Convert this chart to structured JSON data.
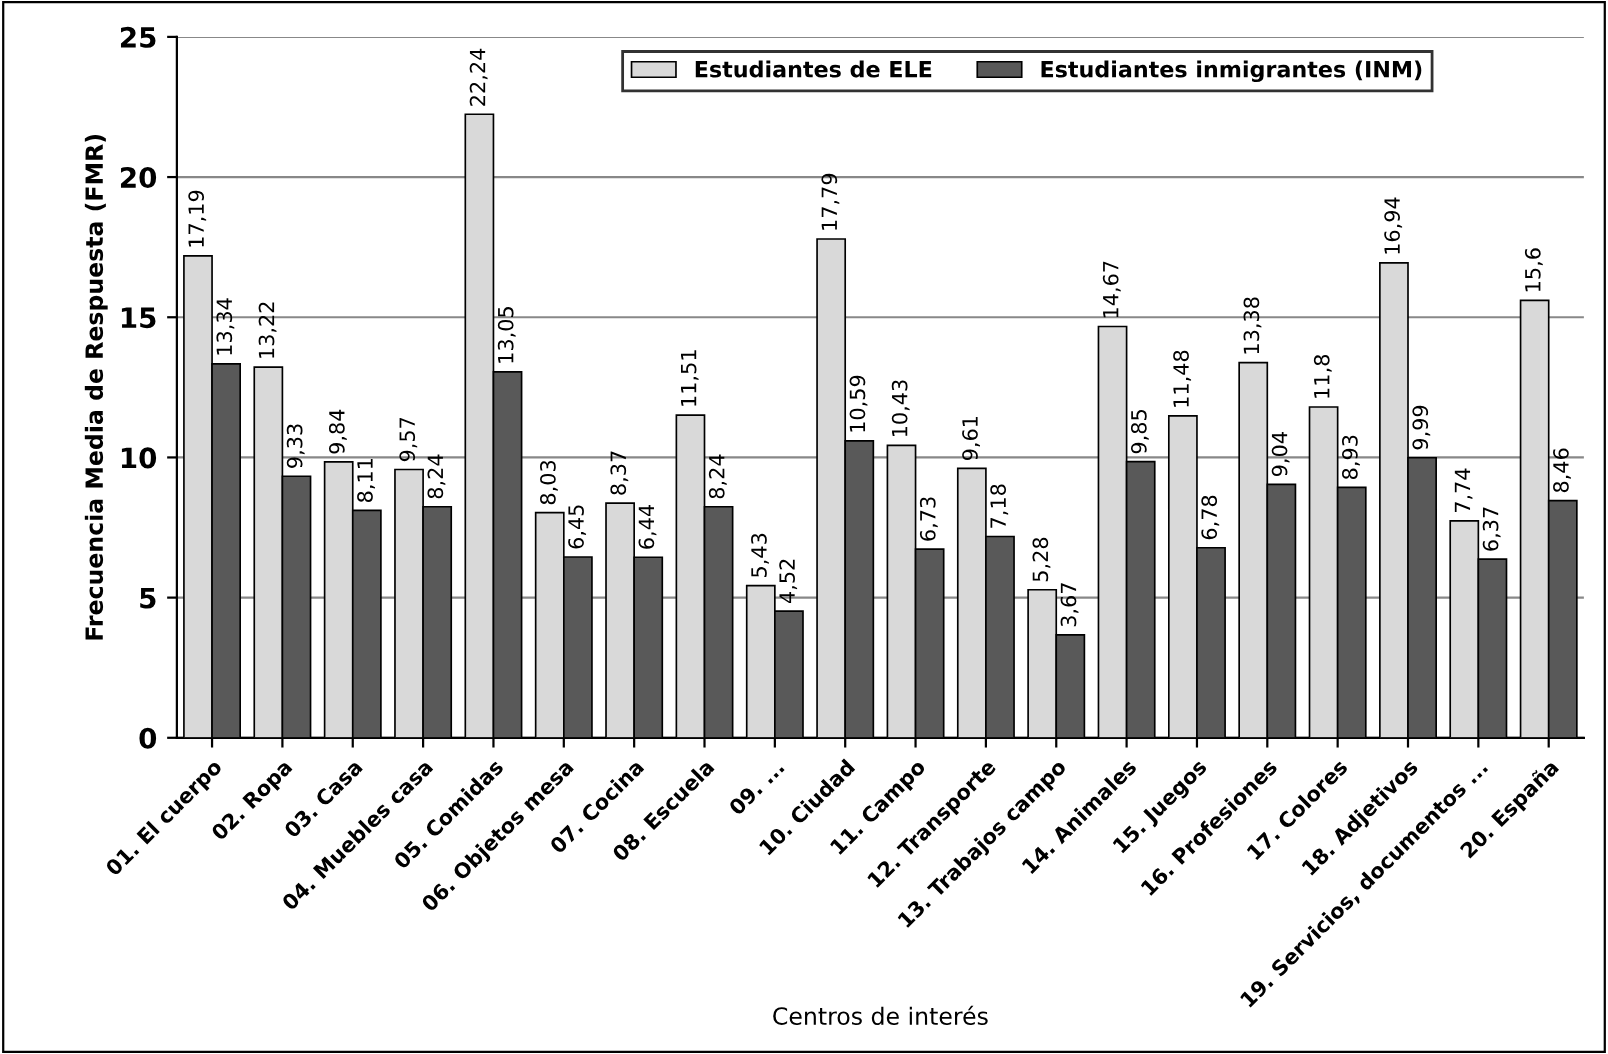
{
  "chart_data": {
    "type": "bar",
    "xlabel": "Centros de interés",
    "ylabel": "Frecuencia Media de Respuesta (FMR)",
    "categories": [
      "01. El cuerpo",
      "02. Ropa",
      "03. Casa",
      "04. Muebles casa",
      "05. Comidas",
      "06. Objetos mesa",
      "07. Cocina",
      "08. Escuela",
      "09. ...",
      "10. Ciudad",
      "11. Campo",
      "12. Transporte",
      "13. Trabajos campo",
      "14. Animales",
      "15. Juegos",
      "16. Profesiones",
      "17. Colores",
      "18. Adjetivos",
      "19. Servicios, documentos ...",
      "20. España"
    ],
    "series": [
      {
        "name": "Estudiantes de ELE",
        "color": "#d9d9d9",
        "values": [
          17.19,
          13.22,
          9.84,
          9.57,
          22.24,
          8.03,
          8.37,
          11.51,
          5.43,
          17.79,
          10.43,
          9.61,
          5.28,
          14.67,
          11.48,
          13.38,
          11.8,
          16.94,
          7.74,
          15.6
        ],
        "value_labels": [
          "17,19",
          "13,22",
          "9,84",
          "9,57",
          "22,24",
          "8,03",
          "8,37",
          "11,51",
          "5,43",
          "17,79",
          "10,43",
          "9,61",
          "5,28",
          "14,67",
          "11,48",
          "13,38",
          "11,8",
          "16,94",
          "7,74",
          "15,6"
        ]
      },
      {
        "name": "Estudiantes inmigrantes (INM)",
        "color": "#595959",
        "values": [
          13.34,
          9.33,
          8.11,
          8.24,
          13.05,
          6.45,
          6.44,
          8.24,
          4.52,
          10.59,
          6.73,
          7.18,
          3.67,
          9.85,
          6.78,
          9.04,
          8.93,
          9.99,
          6.37,
          8.46
        ],
        "value_labels": [
          "13,34",
          "9,33",
          "8,11",
          "8,24",
          "13,05",
          "6,45",
          "6,44",
          "8,24",
          "4,52",
          "10,59",
          "6,73",
          "7,18",
          "3,67",
          "9,85",
          "6,78",
          "9,04",
          "8,93",
          "9,99",
          "6,37",
          "8,46"
        ]
      }
    ],
    "ylim": [
      0,
      25
    ],
    "yticks": [
      0,
      5,
      10,
      15,
      20,
      25
    ],
    "grid": "y",
    "legend": "top right"
  }
}
